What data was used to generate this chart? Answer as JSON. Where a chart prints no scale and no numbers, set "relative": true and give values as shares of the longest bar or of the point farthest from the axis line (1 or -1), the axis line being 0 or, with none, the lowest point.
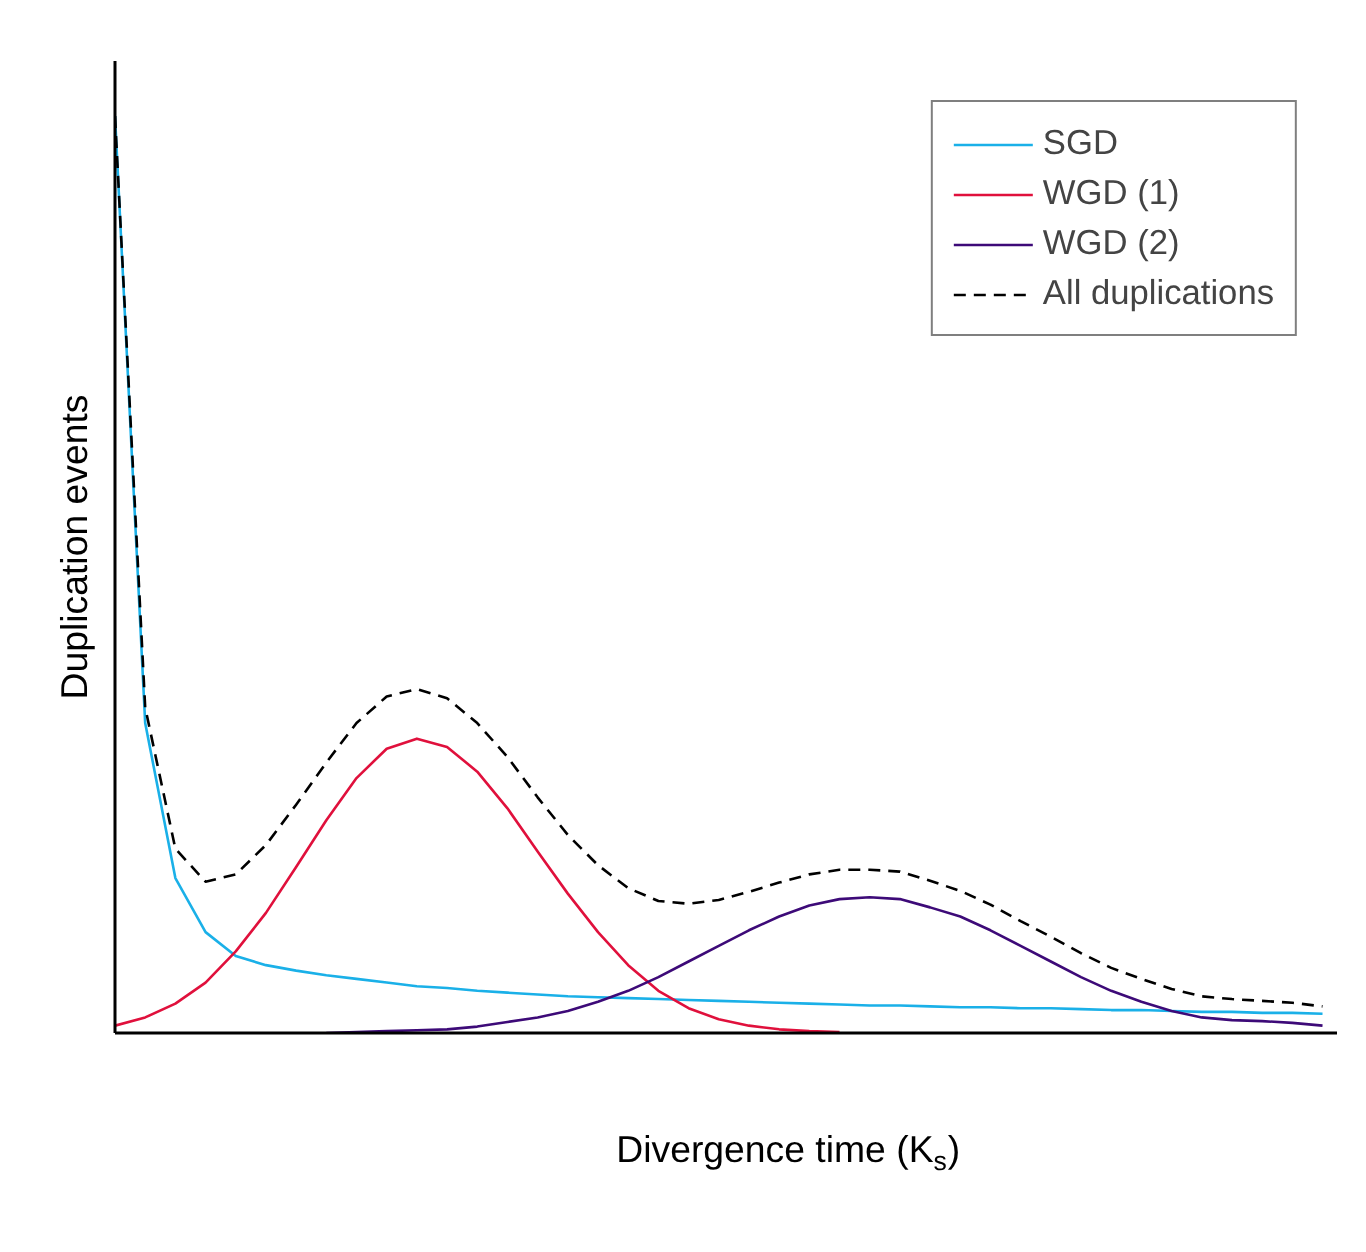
{
  "chart_data": {
    "type": "line",
    "relative": true,
    "xlabel": "Divergence time (K$_{s}$)",
    "ylabel": "Duplication events",
    "legend": "top right",
    "categories": [
      null,
      null,
      null,
      null,
      null,
      null,
      null,
      null,
      null,
      null,
      null,
      null,
      null,
      null,
      null,
      null,
      null,
      null,
      null,
      null,
      null,
      null,
      null,
      null,
      null,
      null,
      null,
      null,
      null,
      null,
      null,
      null,
      null,
      null,
      null,
      null,
      null,
      null,
      null,
      null,
      null
    ],
    "series": [
      {
        "name": "SGD",
        "color": "#1ab0e8",
        "line_style": "solid",
        "values": [
          1.0,
          0.338,
          0.169,
          0.11,
          0.084,
          0.074,
          0.068,
          0.063,
          0.059,
          0.055,
          0.051,
          0.049,
          0.046,
          0.044,
          0.042,
          0.04,
          0.039,
          0.038,
          0.037,
          0.036,
          0.035,
          0.034,
          0.033,
          0.032,
          0.031,
          0.03,
          0.03,
          0.029,
          0.028,
          0.028,
          0.027,
          0.027,
          0.026,
          0.025,
          0.025,
          0.024,
          0.023,
          0.023,
          0.022,
          0.022,
          0.021
        ]
      },
      {
        "name": "WGD (1)",
        "color": "#e0103c",
        "line_style": "solid",
        "values": [
          0.008,
          0.017,
          0.032,
          0.055,
          0.089,
          0.131,
          0.181,
          0.232,
          0.278,
          0.31,
          0.321,
          0.312,
          0.285,
          0.245,
          0.198,
          0.152,
          0.11,
          0.074,
          0.046,
          0.027,
          0.015,
          0.008,
          0.004,
          0.002,
          0.001,
          null,
          null,
          null,
          null,
          null,
          null,
          null,
          null,
          null,
          null,
          null,
          null,
          null,
          null,
          null,
          null
        ]
      },
      {
        "name": "WGD (2)",
        "color": "#3d0a78",
        "line_style": "solid",
        "values": [
          null,
          null,
          null,
          null,
          null,
          null,
          null,
          0,
          0.001,
          0.002,
          0.003,
          0.004,
          0.007,
          0.012,
          0.017,
          0.024,
          0.034,
          0.046,
          0.061,
          0.078,
          0.095,
          0.112,
          0.127,
          0.139,
          0.146,
          0.148,
          0.146,
          0.137,
          0.127,
          0.112,
          0.095,
          0.078,
          0.061,
          0.046,
          0.034,
          0.024,
          0.017,
          0.014,
          0.013,
          0.011,
          0.008
        ]
      },
      {
        "name": "All duplications",
        "color": "#000000",
        "line_style": "dashed",
        "values": [
          1.0,
          0.355,
          0.201,
          0.165,
          0.173,
          0.205,
          0.249,
          0.295,
          0.338,
          0.367,
          0.375,
          0.365,
          0.338,
          0.301,
          0.257,
          0.216,
          0.183,
          0.158,
          0.144,
          0.141,
          0.145,
          0.154,
          0.164,
          0.173,
          0.178,
          0.178,
          0.176,
          0.166,
          0.155,
          0.14,
          0.122,
          0.105,
          0.087,
          0.071,
          0.059,
          0.048,
          0.04,
          0.037,
          0.035,
          0.033,
          0.029
        ]
      }
    ]
  }
}
